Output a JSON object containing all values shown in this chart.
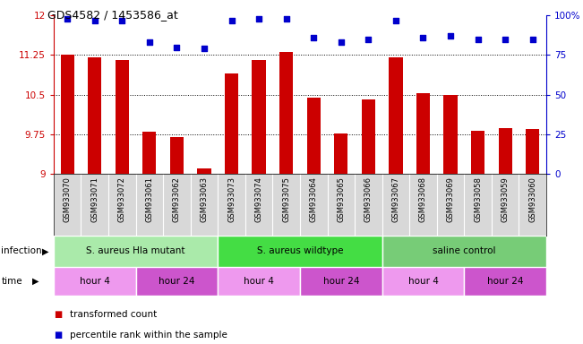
{
  "title": "GDS4582 / 1453586_at",
  "samples": [
    "GSM933070",
    "GSM933071",
    "GSM933072",
    "GSM933061",
    "GSM933062",
    "GSM933063",
    "GSM933073",
    "GSM933074",
    "GSM933075",
    "GSM933064",
    "GSM933065",
    "GSM933066",
    "GSM933067",
    "GSM933068",
    "GSM933069",
    "GSM933058",
    "GSM933059",
    "GSM933060"
  ],
  "bar_values": [
    11.25,
    11.2,
    11.15,
    9.8,
    9.7,
    9.1,
    10.9,
    11.15,
    11.3,
    10.45,
    9.77,
    10.4,
    11.2,
    10.52,
    10.5,
    9.82,
    9.87,
    9.85
  ],
  "percentile_values": [
    98,
    97,
    97,
    83,
    80,
    79,
    97,
    98,
    98,
    86,
    83,
    85,
    97,
    86,
    87,
    85,
    85,
    85
  ],
  "bar_color": "#cc0000",
  "dot_color": "#0000cc",
  "ylim_left": [
    9,
    12
  ],
  "ylim_right": [
    0,
    100
  ],
  "yticks_left": [
    9,
    9.75,
    10.5,
    11.25,
    12
  ],
  "yticks_right": [
    0,
    25,
    50,
    75,
    100
  ],
  "ytick_labels_left": [
    "9",
    "9.75",
    "10.5",
    "11.25",
    "12"
  ],
  "ytick_labels_right": [
    "0",
    "25",
    "50",
    "75",
    "100%"
  ],
  "infection_groups": [
    {
      "label": "S. aureus Hla mutant",
      "start": 0,
      "end": 6,
      "color": "#aaeaaa"
    },
    {
      "label": "S. aureus wildtype",
      "start": 6,
      "end": 12,
      "color": "#44dd44"
    },
    {
      "label": "saline control",
      "start": 12,
      "end": 18,
      "color": "#77cc77"
    }
  ],
  "time_groups": [
    {
      "label": "hour 4",
      "start": 0,
      "end": 3,
      "color": "#ee99ee"
    },
    {
      "label": "hour 24",
      "start": 3,
      "end": 6,
      "color": "#cc55cc"
    },
    {
      "label": "hour 4",
      "start": 6,
      "end": 9,
      "color": "#ee99ee"
    },
    {
      "label": "hour 24",
      "start": 9,
      "end": 12,
      "color": "#cc55cc"
    },
    {
      "label": "hour 4",
      "start": 12,
      "end": 15,
      "color": "#ee99ee"
    },
    {
      "label": "hour 24",
      "start": 15,
      "end": 18,
      "color": "#cc55cc"
    }
  ],
  "legend_items": [
    {
      "label": "transformed count",
      "color": "#cc0000"
    },
    {
      "label": "percentile rank within the sample",
      "color": "#0000cc"
    }
  ],
  "infection_label": "infection",
  "time_label": "time",
  "background_color": "#ffffff",
  "sample_bg_color": "#d8d8d8",
  "bar_width": 0.5,
  "axis_color": "#cc0000",
  "right_axis_color": "#0000cc"
}
